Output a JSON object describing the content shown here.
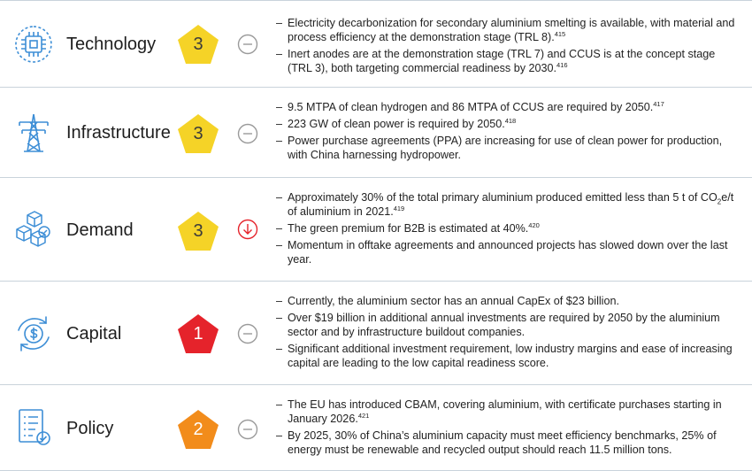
{
  "rows": [
    {
      "label": "Technology",
      "icon": "chip-icon",
      "score": "3",
      "score_color": "#f5d327",
      "trend": "neutral",
      "bullets": [
        {
          "text": "Electricity decarbonization for secondary aluminium smelting is available, with material and process efficiency at the demonstration stage (TRL 8).",
          "ref": "415"
        },
        {
          "text": "Inert anodes are at the demonstration stage (TRL 7) and CCUS is at the concept stage (TRL 3), both targeting commercial readiness by 2030.",
          "ref": "416"
        }
      ]
    },
    {
      "label": "Infrastructure",
      "icon": "power-tower-icon",
      "score": "3",
      "score_color": "#f5d327",
      "trend": "neutral",
      "bullets": [
        {
          "text": "9.5 MTPA of clean hydrogen and 86 MTPA of CCUS are required by 2050.",
          "ref": "417"
        },
        {
          "text": "223 GW of clean power is required by 2050.",
          "ref": "418"
        },
        {
          "text": "Power purchase agreements (PPA) are increasing for use of clean power for production, with China harnessing hydropower.",
          "ref": ""
        }
      ]
    },
    {
      "label": "Demand",
      "icon": "boxes-check-icon",
      "score": "3",
      "score_color": "#f5d327",
      "trend": "down",
      "bullets": [
        {
          "text_a": "Approximately 30% of the total primary aluminium produced emitted less than 5 t of CO",
          "sub": "2",
          "text_b": "e/t of aluminium in 2021.",
          "ref": "419"
        },
        {
          "text": "The green premium for B2B is estimated at 40%.",
          "ref": "420"
        },
        {
          "text": "Momentum in offtake agreements and announced projects has slowed down over the last year.",
          "ref": ""
        }
      ]
    },
    {
      "label": "Capital",
      "icon": "dollar-cycle-icon",
      "score": "1",
      "score_color": "#e5232b",
      "trend": "neutral",
      "bullets": [
        {
          "text": "Currently, the aluminium sector has an annual CapEx of $23 billion.",
          "ref": ""
        },
        {
          "text": "Over $19 billion in additional annual investments are required by 2050 by the aluminium sector and by infrastructure buildout companies.",
          "ref": ""
        },
        {
          "text": "Significant additional investment requirement, low industry margins and ease of increasing capital are leading to the low capital readiness score.",
          "ref": ""
        }
      ]
    },
    {
      "label": "Policy",
      "icon": "document-check-icon",
      "score": "2",
      "score_color": "#f28c1b",
      "trend": "neutral",
      "bullets": [
        {
          "text": "The EU has introduced CBAM, covering aluminium, with certificate purchases starting in January 2026.",
          "ref": "421"
        },
        {
          "text": "By 2025, 30% of China’s aluminium capacity must meet efficiency benchmarks, 25% of energy must be renewable and recycled output should reach 11.5 million tons.",
          "ref": ""
        }
      ]
    }
  ]
}
